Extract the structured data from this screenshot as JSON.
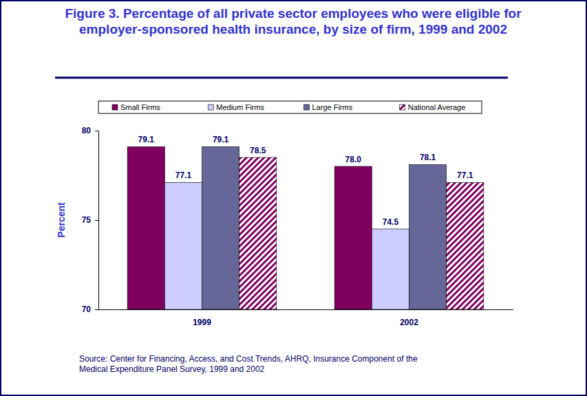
{
  "chart_data": {
    "type": "bar",
    "title": "Figure 3. Percentage of all private sector employees who were eligible for employer-sponsored health insurance, by size of firm, 1999 and 2002",
    "y_label": "Percent",
    "source": "Source: Center for Financing, Access, and Cost Trends, AHRQ, Insurance Component of the Medical Expenditure Panel Survey, 1999 and 2002",
    "categories": [
      "1999",
      "2002"
    ],
    "series": [
      {
        "name": "Small Firms",
        "color": "#800060",
        "values": [
          79.1,
          78.0
        ],
        "value_labels": [
          "79.1",
          "78.0"
        ]
      },
      {
        "name": "Medium Firms",
        "color": "#ccccff",
        "values": [
          77.1,
          74.5
        ]
      },
      {
        "name": "Large Firms",
        "color": "#666699",
        "values": [
          79.1,
          78.1
        ]
      },
      {
        "name": "National Average",
        "color": "#800060",
        "values": [
          78.5,
          77.1
        ]
      }
    ],
    "ylim": [
      70,
      80
    ],
    "yticks": [
      70,
      75,
      80
    ],
    "grid": false,
    "legend": "top",
    "data_labels": true
  }
}
